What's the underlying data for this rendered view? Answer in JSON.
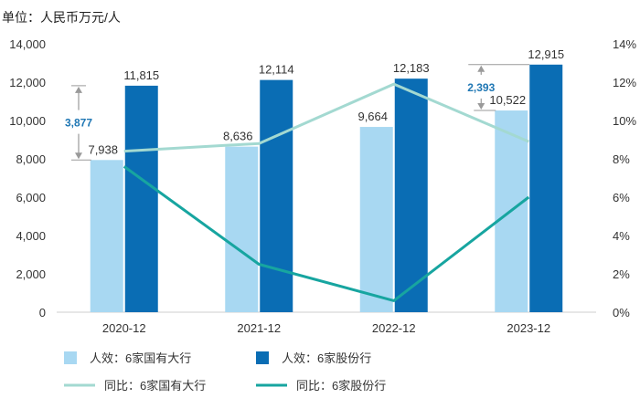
{
  "chart_data": {
    "type": "bar",
    "unit_label": "单位：人民币万元/人",
    "categories": [
      "2020-12",
      "2021-12",
      "2022-12",
      "2023-12"
    ],
    "left_axis": {
      "ylim": [
        0,
        14000
      ],
      "ticks": [
        "0",
        "2,000",
        "4,000",
        "6,000",
        "8,000",
        "10,000",
        "12,000",
        "14,000"
      ]
    },
    "right_axis": {
      "ylim": [
        0,
        14
      ],
      "ticks": [
        "0%",
        "2%",
        "4%",
        "6%",
        "8%",
        "10%",
        "12%",
        "14%"
      ]
    },
    "series": [
      {
        "name": "人效：6家国有大行",
        "kind": "bar",
        "axis": "left",
        "color": "#a8d8f2",
        "values": [
          7938,
          8636,
          9664,
          10522
        ],
        "labels": [
          "7,938",
          "8,636",
          "9,664",
          "10,522"
        ]
      },
      {
        "name": "人效：6家股份行",
        "kind": "bar",
        "axis": "left",
        "color": "#0a6db4",
        "values": [
          11815,
          12114,
          12183,
          12915
        ],
        "labels": [
          "11,815",
          "12,114",
          "12,183",
          "12,915"
        ]
      },
      {
        "name": "同比：6家国有大行",
        "kind": "line",
        "axis": "right",
        "color": "#a3d9d1",
        "values": [
          8.4,
          8.8,
          11.9,
          8.9
        ]
      },
      {
        "name": "同比：6家股份行",
        "kind": "line",
        "axis": "right",
        "color": "#17a5a0",
        "values": [
          7.6,
          2.5,
          0.6,
          6.0
        ]
      }
    ],
    "annotations": [
      {
        "category": "2020-12",
        "label": "3,877",
        "from": 7938,
        "to": 11815
      },
      {
        "category": "2023-12",
        "label": "2,393",
        "from": 10522,
        "to": 12915
      }
    ]
  }
}
